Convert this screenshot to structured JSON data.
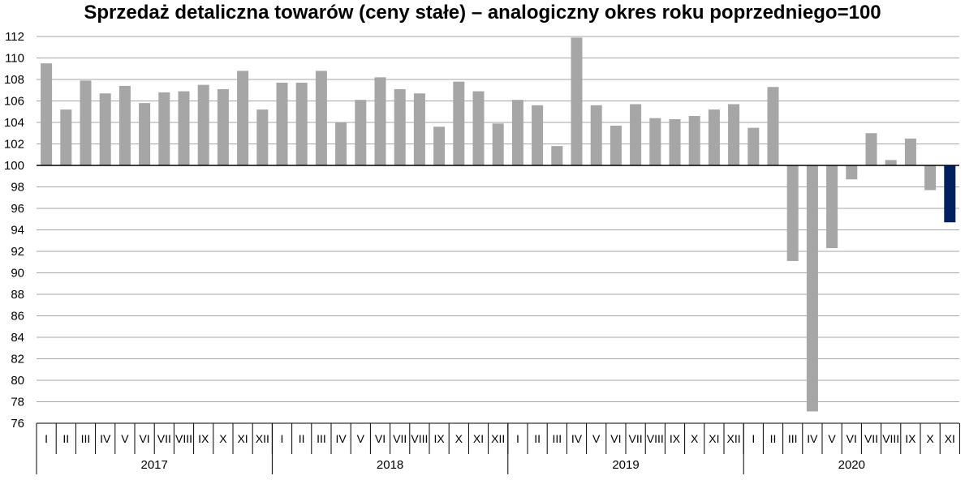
{
  "chart_data": {
    "type": "bar",
    "title": "Sprzedaż detaliczna towarów (ceny stałe) – analogiczny okres roku poprzedniego=100",
    "xlabel": "",
    "ylabel": "",
    "ylim": [
      76,
      112
    ],
    "ytick_step": 2,
    "baseline": 100,
    "grid": true,
    "legend": "none",
    "colors": {
      "default": "#a6a6a6",
      "highlight": "#002060",
      "grid": "#a6a6a6",
      "axis": "#000000"
    },
    "highlight_last": true,
    "year_groups": [
      {
        "label": "2017",
        "months": [
          "I",
          "II",
          "III",
          "IV",
          "V",
          "VI",
          "VII",
          "VIII",
          "IX",
          "X",
          "XI",
          "XII"
        ]
      },
      {
        "label": "2018",
        "months": [
          "I",
          "II",
          "III",
          "IV",
          "V",
          "VI",
          "VII",
          "VIII",
          "IX",
          "X",
          "XI",
          "XII"
        ]
      },
      {
        "label": "2019",
        "months": [
          "I",
          "II",
          "III",
          "IV",
          "V",
          "VI",
          "VII",
          "VIII",
          "IX",
          "X",
          "XI",
          "XII"
        ]
      },
      {
        "label": "2020",
        "months": [
          "I",
          "II",
          "III",
          "IV",
          "V",
          "VI",
          "VII",
          "VIII",
          "IX",
          "X",
          "XI"
        ]
      }
    ],
    "values": [
      109.5,
      105.2,
      107.9,
      106.7,
      107.4,
      105.8,
      106.8,
      106.9,
      107.5,
      107.1,
      108.8,
      105.2,
      107.7,
      107.7,
      108.8,
      104.0,
      106.1,
      108.2,
      107.1,
      106.7,
      103.6,
      107.8,
      106.9,
      103.9,
      106.1,
      105.6,
      101.8,
      111.9,
      105.6,
      103.7,
      105.7,
      104.4,
      104.3,
      104.6,
      105.2,
      105.7,
      103.5,
      107.3,
      91.1,
      77.1,
      92.3,
      98.7,
      103.0,
      100.5,
      102.5,
      97.7,
      94.7
    ]
  }
}
